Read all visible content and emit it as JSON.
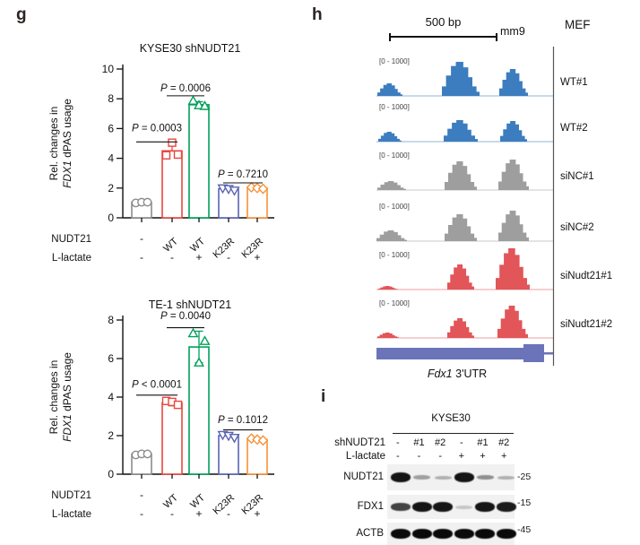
{
  "panel_g": {
    "label": "g"
  },
  "panel_h": {
    "label": "h",
    "scale_label": "500 bp",
    "genome_label": "mm9",
    "cell_label": "MEF",
    "gene_label_italic": "Fdx1",
    "gene_label_rest": " 3'UTR",
    "gene_color": "#6b73b9"
  },
  "panel_i": {
    "label": "i",
    "cell_line": "KYSE30",
    "row1_label": "shNUDT21",
    "row1_values": [
      "-",
      "#1",
      "#2",
      "-",
      "#1",
      "#2"
    ],
    "row2_label": "L-lactate",
    "row2_values": [
      "-",
      "-",
      "-",
      "+",
      "+",
      "+"
    ],
    "blots": [
      {
        "label": "NUDT21",
        "marker": "-25",
        "bands": [
          0.95,
          0.35,
          0.28,
          0.95,
          0.42,
          0.28
        ]
      },
      {
        "label": "FDX1",
        "marker": "-15",
        "bands": [
          0.75,
          0.95,
          0.95,
          0.18,
          0.95,
          0.92
        ]
      },
      {
        "label": "ACTB",
        "marker": "-45",
        "bands": [
          1,
          1,
          1,
          1,
          1,
          1
        ]
      }
    ]
  },
  "chart_data": [
    {
      "type": "bar",
      "title": "KYSE30 shNUDT21",
      "ylabel_lines": [
        "Rel. changes in",
        "FDX1 dPAS usage"
      ],
      "ylabel_italic_prefix": "FDX1",
      "ylim": [
        0,
        10
      ],
      "yticks": [
        0,
        2,
        4,
        6,
        8,
        10
      ],
      "row1_label": "NUDT21",
      "row2_label": "L-lactate",
      "categories_row1": [
        "-",
        "WT",
        "WT",
        "K23R",
        "K23R"
      ],
      "categories_row2": [
        "-",
        "-",
        "+",
        "-",
        "+"
      ],
      "values": [
        1.05,
        4.5,
        7.6,
        1.95,
        2.0
      ],
      "points": [
        [
          1.0,
          1.05,
          1.05
        ],
        [
          4.2,
          5.05,
          4.25
        ],
        [
          7.85,
          7.55,
          7.5
        ],
        [
          2.0,
          1.95,
          1.85
        ],
        [
          2.05,
          2.0,
          1.95
        ]
      ],
      "errors": [
        null,
        [
          4.5,
          5.0
        ],
        [
          7.6,
          7.8
        ],
        null,
        null
      ],
      "colors": [
        "#8c8c8e",
        "#e8473e",
        "#00a05a",
        "#5a64b4",
        "#f5923a"
      ],
      "markers": [
        "circle",
        "square",
        "triangle",
        "triangle-down",
        "diamond"
      ],
      "pvalues": [
        {
          "text": "P = 0.0003",
          "i1": 0,
          "i2": 1,
          "text_v": 5.8,
          "line_v": 5.1
        },
        {
          "text": "P = 0.0006",
          "i1": 1,
          "i2": 2,
          "text_v": 8.5,
          "line_v": 8.2
        },
        {
          "text": "P = 0.7210",
          "i1": 3,
          "i2": 4,
          "text_v": 2.72,
          "line_v": 2.35
        }
      ]
    },
    {
      "type": "bar",
      "title": "TE-1 shNUDT21",
      "ylabel_lines": [
        "Rel. changes in",
        "FDX1 dPAS usage"
      ],
      "ylabel_italic_prefix": "FDX1",
      "ylim": [
        0,
        8
      ],
      "yticks": [
        0,
        2,
        4,
        6,
        8
      ],
      "row1_label": "NUDT21",
      "row2_label": "L-lactate",
      "categories_row1": [
        "-",
        "WT",
        "WT",
        "K23R",
        "K23R"
      ],
      "categories_row2": [
        "-",
        "-",
        "+",
        "-",
        "+"
      ],
      "values": [
        1.05,
        3.7,
        6.6,
        2.0,
        1.8
      ],
      "points": [
        [
          1.0,
          1.05,
          1.05
        ],
        [
          3.8,
          3.75,
          3.6
        ],
        [
          7.3,
          5.78,
          6.9
        ],
        [
          2.05,
          2.0,
          1.9
        ],
        [
          1.85,
          1.8,
          1.75
        ]
      ],
      "errors": [
        null,
        [
          3.55,
          3.85
        ],
        [
          5.78,
          7.42
        ],
        null,
        null
      ],
      "colors": [
        "#8c8c8e",
        "#e8473e",
        "#00a05a",
        "#5a64b4",
        "#f5923a"
      ],
      "markers": [
        "circle",
        "square",
        "triangle",
        "triangle-down",
        "diamond"
      ],
      "pvalues": [
        {
          "text": "P < 0.0001",
          "i1": 0,
          "i2": 1,
          "text_v": 4.5,
          "line_v": 4.1
        },
        {
          "text": "P = 0.0040",
          "i1": 1,
          "i2": 2,
          "text_v": 8.05,
          "line_v": 7.6
        },
        {
          "text": "P = 0.1012",
          "i1": 3,
          "i2": 4,
          "text_v": 2.65,
          "line_v": 2.3
        }
      ]
    },
    {
      "type": "area",
      "range_label": "[0 - 1000]",
      "range_max": 1000,
      "series": [
        {
          "label": "WT#1",
          "color": "#3c7dbf",
          "peaks": [
            [
              15,
              14,
              14
            ],
            [
              94,
              21,
              38
            ],
            [
              153,
              16,
              30
            ]
          ]
        },
        {
          "label": "WT#2",
          "color": "#3c7dbf",
          "peaks": [
            [
              15,
              13,
              11
            ],
            [
              94,
              19,
              24
            ],
            [
              153,
              15,
              23
            ]
          ]
        },
        {
          "label": "siNC#1",
          "color": "#9e9e9e",
          "peaks": [
            [
              17,
              16,
              10
            ],
            [
              94,
              18,
              32
            ],
            [
              153,
              17,
              34
            ]
          ]
        },
        {
          "label": "siNC#2",
          "color": "#9e9e9e",
          "peaks": [
            [
              17,
              17,
              12
            ],
            [
              94,
              18,
              30
            ],
            [
              153,
              17,
              34
            ]
          ]
        },
        {
          "label": "siNudt21#1",
          "color": "#e25558",
          "peaks": [
            [
              13,
              11,
              4
            ],
            [
              94,
              15,
              28
            ],
            [
              152,
              19,
              46
            ]
          ]
        },
        {
          "label": "siNudt21#2",
          "color": "#e25558",
          "peaks": [
            [
              13,
              12,
              6
            ],
            [
              94,
              15,
              22
            ],
            [
              152,
              17,
              36
            ]
          ]
        }
      ]
    }
  ]
}
